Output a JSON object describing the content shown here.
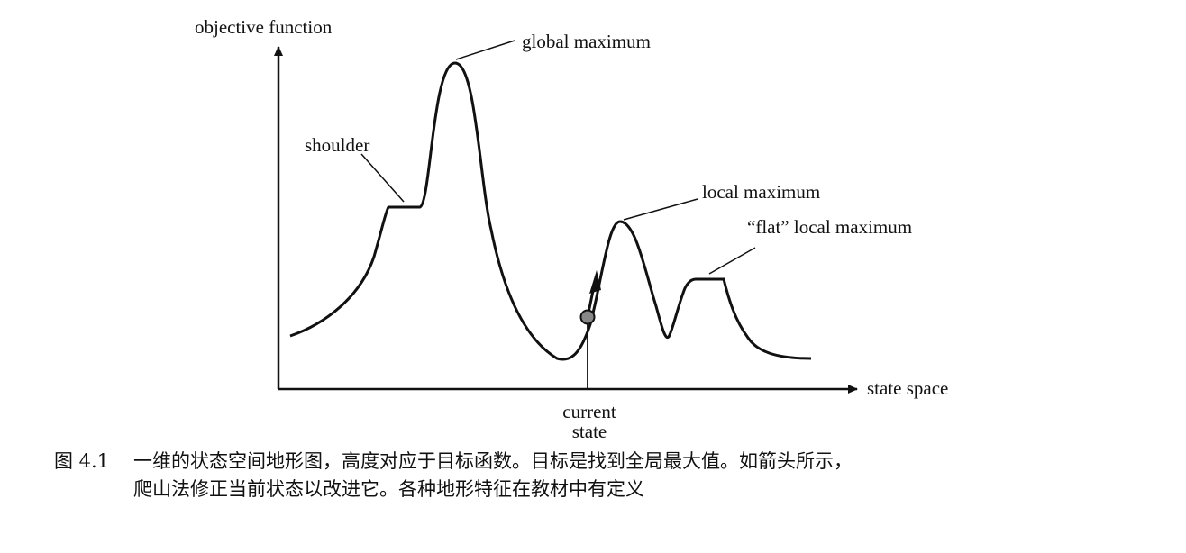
{
  "labels": {
    "y_axis": "objective function",
    "x_axis": "state space",
    "global_max": "global maximum",
    "shoulder": "shoulder",
    "local_max": "local maximum",
    "flat_local_max": "“flat” local maximum",
    "current_line1": "current",
    "current_line2": "state"
  },
  "caption": {
    "number": "图 4.1",
    "line1": "一维的状态空间地形图，高度对应于目标函数。目标是找到全局最大值。如箭头所示，",
    "line2": "爬山法修正当前状态以改进它。各种地形特征在教材中有定义"
  }
}
